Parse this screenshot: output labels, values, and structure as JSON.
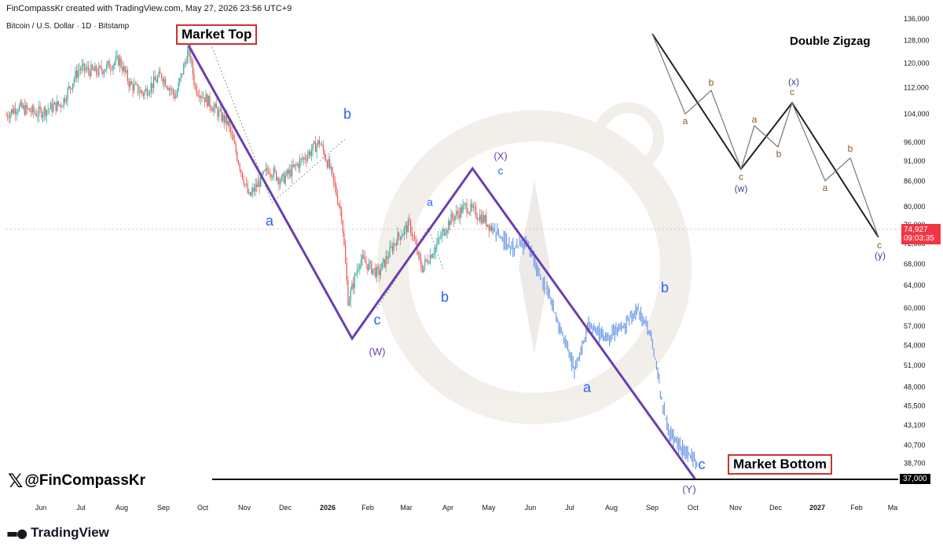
{
  "header": {
    "credit": "FinCompassKr created with TradingView.com, May 27, 2026 23:56 UTC+9",
    "symbol": "Bitcoin / U.S. Dollar · 1D · Bitstamp"
  },
  "labels": {
    "market_top": "Market Top",
    "market_bottom": "Market Bottom",
    "double_zigzag": "Double Zigzag",
    "handle": "@FinCompassKr",
    "tradingview": "TradingView"
  },
  "price_tag": {
    "price": "74,927",
    "countdown": "09:03:35"
  },
  "bottom_tag": "37,000",
  "colors": {
    "candle_up": "#26a69a",
    "candle_down": "#ef5350",
    "projection": "#6f9ce8",
    "wave_line": "#6a3fb0",
    "wave_label_blue": "#2962ff",
    "wave_label_purple": "#6a3fb0",
    "diagram_brown": "#8b5a2b",
    "diagram_navy": "#3a3f8f",
    "box_border": "#d32f2f",
    "price_tag_bg": "#f23645"
  },
  "chart_data": {
    "type": "candlestick",
    "title": "Bitcoin / U.S. Dollar · 1D · Bitstamp",
    "x_ticks": [
      "Jun",
      "Jul",
      "Aug",
      "Sep",
      "Oct",
      "Nov",
      "Dec",
      "2026",
      "Feb",
      "Mar",
      "Apr",
      "May",
      "Jun",
      "Jul",
      "Aug",
      "Sep",
      "Oct",
      "Nov",
      "Dec",
      "2027",
      "Feb",
      "Ma"
    ],
    "y_ticks": [
      136000,
      128000,
      120000,
      112000,
      104000,
      96000,
      91000,
      86000,
      80000,
      76000,
      72000,
      68000,
      64000,
      60000,
      57000,
      54000,
      51000,
      48000,
      45500,
      43100,
      40700,
      38700
    ],
    "y_scale": "log",
    "ylim": [
      35000,
      138000
    ],
    "historical_path": [
      [
        "2025-05-18",
        103000
      ],
      [
        "2025-05-28",
        106000
      ],
      [
        "2025-06-12",
        104000
      ],
      [
        "2025-07-01",
        107000
      ],
      [
        "2025-07-14",
        118000
      ],
      [
        "2025-07-28",
        117000
      ],
      [
        "2025-08-14",
        121000
      ],
      [
        "2025-08-22",
        113000
      ],
      [
        "2025-09-01",
        110000
      ],
      [
        "2025-09-15",
        116000
      ],
      [
        "2025-09-26",
        109000
      ],
      [
        "2025-10-06",
        125000
      ],
      [
        "2025-10-11",
        112000
      ],
      [
        "2025-10-20",
        108000
      ],
      [
        "2025-11-05",
        101000
      ],
      [
        "2025-11-21",
        82000
      ],
      [
        "2025-12-06",
        89000
      ],
      [
        "2025-12-16",
        86000
      ],
      [
        "2026-01-06",
        93000
      ],
      [
        "2026-01-14",
        96000
      ],
      [
        "2026-01-22",
        89000
      ],
      [
        "2026-01-31",
        78000
      ],
      [
        "2026-02-05",
        61000
      ],
      [
        "2026-02-14",
        69000
      ],
      [
        "2026-02-28",
        66000
      ],
      [
        "2026-03-14",
        73000
      ],
      [
        "2026-03-24",
        76000
      ],
      [
        "2026-04-02",
        67000
      ],
      [
        "2026-04-12",
        71000
      ],
      [
        "2026-04-24",
        77000
      ],
      [
        "2026-05-06",
        80000
      ],
      [
        "2026-05-20",
        77000
      ],
      [
        "2026-05-27",
        74900
      ]
    ],
    "projection_path": [
      [
        "2026-05-27",
        74900
      ],
      [
        "2026-06-10",
        71000
      ],
      [
        "2026-06-22",
        72000
      ],
      [
        "2026-07-10",
        61000
      ],
      [
        "2026-07-28",
        50500
      ],
      [
        "2026-08-08",
        57000
      ],
      [
        "2026-08-22",
        55000
      ],
      [
        "2026-09-04",
        57000
      ],
      [
        "2026-09-14",
        60000
      ],
      [
        "2026-09-25",
        55000
      ],
      [
        "2026-10-03",
        46000
      ],
      [
        "2026-10-08",
        42000
      ],
      [
        "2026-10-20",
        40000
      ],
      [
        "2026-10-30",
        38700
      ]
    ],
    "elliott_wave_path": [
      [
        "2025-10-06",
        126000,
        ""
      ],
      [
        "2026-02-08",
        55000,
        "(W)"
      ],
      [
        "2026-05-11",
        89000,
        "(X)"
      ],
      [
        "2026-10-28",
        37000,
        "(Y)"
      ]
    ],
    "wave_labels": [
      {
        "text": "Market Top"
      },
      {
        "text": "a"
      },
      {
        "text": "b"
      },
      {
        "text": "c"
      },
      {
        "text": "(W)"
      },
      {
        "text": "a"
      },
      {
        "text": "b"
      },
      {
        "text": "c"
      },
      {
        "text": "(X)"
      },
      {
        "text": "a"
      },
      {
        "text": "b"
      },
      {
        "text": "c"
      },
      {
        "text": "(Y)"
      },
      {
        "text": "Market Bottom"
      }
    ],
    "horizontal_line": 37000,
    "last_price": 74927
  },
  "diagram": {
    "title": "Double Zigzag",
    "labels": [
      "a",
      "b",
      "c",
      "(w)",
      "a",
      "b",
      "c",
      "(x)",
      "a",
      "b",
      "c",
      "(y)"
    ]
  }
}
